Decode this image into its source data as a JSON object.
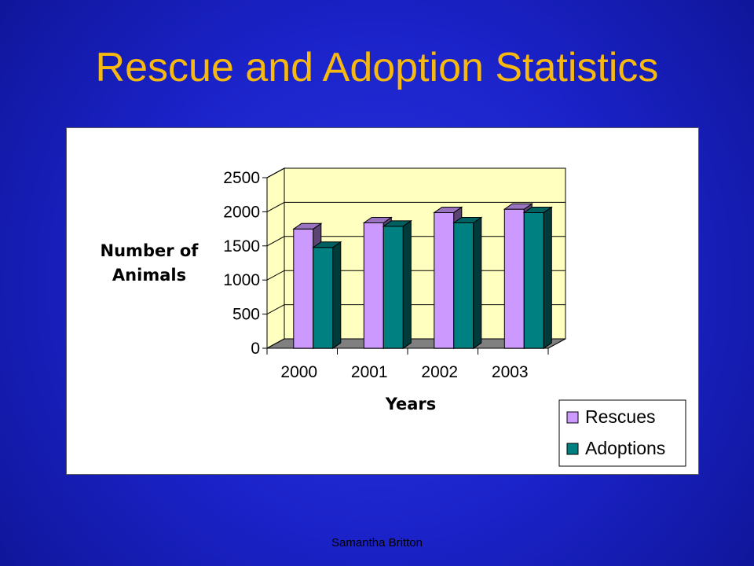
{
  "slide": {
    "title": "Rescue and Adoption Statistics",
    "footer": "Samantha Britton"
  },
  "colors": {
    "background": "#1a22c8",
    "title": "#f7b90f",
    "plot_wall": "#ffffc0",
    "floor": "#808080"
  },
  "chart_data": {
    "type": "bar",
    "style": "3d-clustered-column",
    "categories": [
      "2000",
      "2001",
      "2002",
      "2003"
    ],
    "series": [
      {
        "name": "Rescues",
        "values": [
          1750,
          1840,
          1990,
          2040
        ],
        "color": "#cc99ff"
      },
      {
        "name": "Adoptions",
        "values": [
          1480,
          1790,
          1840,
          1990
        ],
        "color": "#008080"
      }
    ],
    "xlabel": "Years",
    "ylabel_lines": [
      "Number of",
      "Animals"
    ],
    "ylim": [
      0,
      2500
    ],
    "yticks": [
      0,
      500,
      1000,
      1500,
      2000,
      2500
    ],
    "grid": true,
    "legend_position": "bottom-right"
  }
}
